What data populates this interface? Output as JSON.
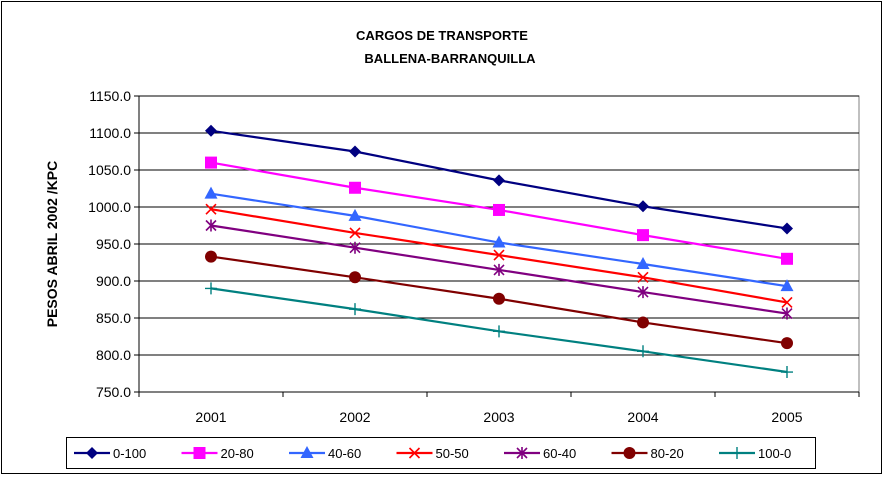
{
  "chart_data": {
    "type": "line",
    "title_line1": "CARGOS DE TRANSPORTE",
    "title_line2": "BALLENA-BARRANQUILLA",
    "xlabel": "",
    "ylabel": "PESOS ABRIL 2002 /KPC",
    "categories": [
      "2001",
      "2002",
      "2003",
      "2004",
      "2005"
    ],
    "ylim": [
      750,
      1150
    ],
    "yticks": [
      750,
      800,
      850,
      900,
      950,
      1000,
      1050,
      1100,
      1150
    ],
    "ytick_labels": [
      "750.0",
      "800.0",
      "850.0",
      "900.0",
      "950.0",
      "1000.0",
      "1050.0",
      "1100.0",
      "1150.0"
    ],
    "grid": "horizontal",
    "legend_position": "bottom",
    "series": [
      {
        "name": "0-100",
        "color": "#000080",
        "marker": "diamond",
        "values": [
          1103,
          1075,
          1036,
          1001,
          971
        ]
      },
      {
        "name": "20-80",
        "color": "#ff00ff",
        "marker": "square",
        "values": [
          1060,
          1026,
          996,
          962,
          930
        ]
      },
      {
        "name": "40-60",
        "color": "#3366ff",
        "marker": "triangle",
        "values": [
          1018,
          988,
          952,
          923,
          893
        ]
      },
      {
        "name": "50-50",
        "color": "#ff0000",
        "marker": "x",
        "values": [
          997,
          965,
          935,
          905,
          871
        ]
      },
      {
        "name": "60-40",
        "color": "#800080",
        "marker": "star",
        "values": [
          975,
          945,
          915,
          885,
          856
        ]
      },
      {
        "name": "80-20",
        "color": "#800000",
        "marker": "circle",
        "values": [
          933,
          905,
          876,
          844,
          816
        ]
      },
      {
        "name": "100-0",
        "color": "#008080",
        "marker": "plus",
        "values": [
          890,
          862,
          832,
          805,
          777
        ]
      }
    ]
  }
}
